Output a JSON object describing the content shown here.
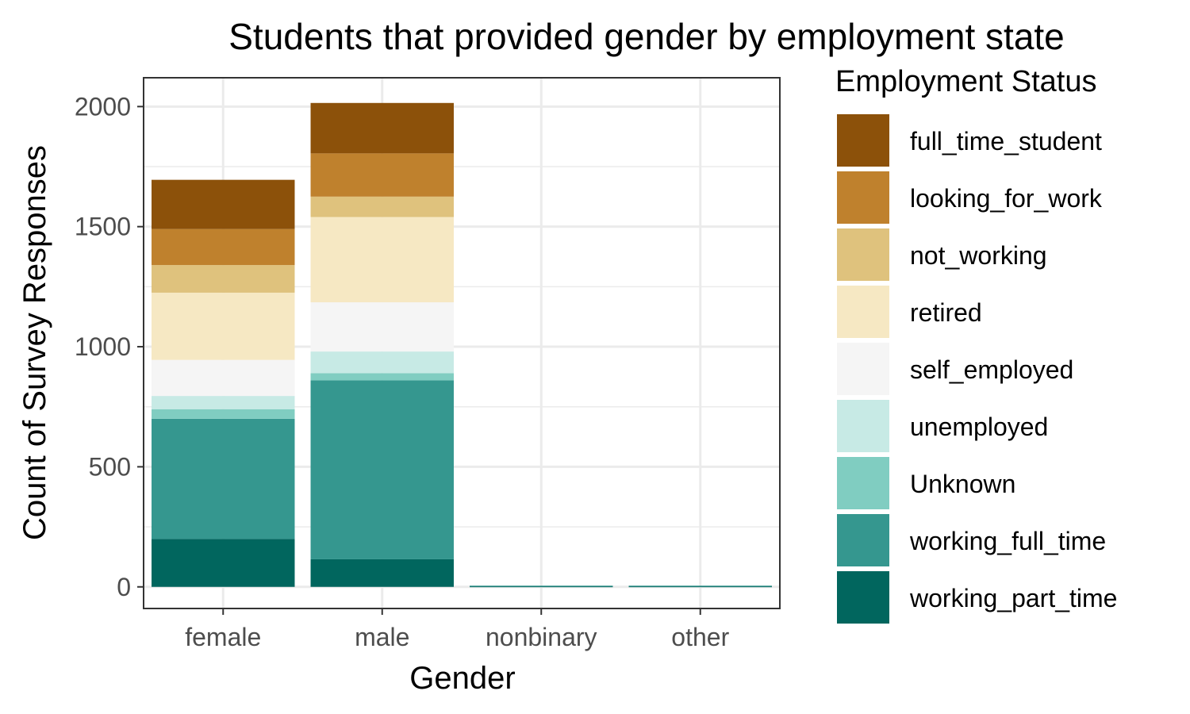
{
  "chart_data": {
    "type": "bar",
    "stacked": true,
    "title": "Students that provided gender by employment state",
    "xlabel": "Gender",
    "ylabel": "Count of Survey Responses",
    "categories": [
      "female",
      "male",
      "nonbinary",
      "other"
    ],
    "ylim": [
      -90,
      2120
    ],
    "yticks": [
      0,
      500,
      1000,
      1500,
      2000
    ],
    "grid": true,
    "legend": {
      "title": "Employment Status",
      "position": "right"
    },
    "series": [
      {
        "name": "working_part_time",
        "color": "#01665e",
        "values": [
          200,
          115,
          2,
          2
        ]
      },
      {
        "name": "working_full_time",
        "color": "#35978f",
        "values": [
          500,
          745,
          3,
          3
        ]
      },
      {
        "name": "Unknown",
        "color": "#80cdc1",
        "values": [
          40,
          30,
          0,
          0
        ]
      },
      {
        "name": "unemployed",
        "color": "#c7eae5",
        "values": [
          55,
          90,
          0,
          0
        ]
      },
      {
        "name": "self_employed",
        "color": "#f5f5f5",
        "values": [
          150,
          205,
          0,
          0
        ]
      },
      {
        "name": "retired",
        "color": "#f6e8c3",
        "values": [
          280,
          355,
          0,
          0
        ]
      },
      {
        "name": "not_working",
        "color": "#dfc27d",
        "values": [
          115,
          85,
          0,
          0
        ]
      },
      {
        "name": "looking_for_work",
        "color": "#bf812d",
        "values": [
          150,
          180,
          0,
          0
        ]
      },
      {
        "name": "full_time_student",
        "color": "#8c510a",
        "values": [
          205,
          210,
          0,
          0
        ]
      }
    ]
  }
}
